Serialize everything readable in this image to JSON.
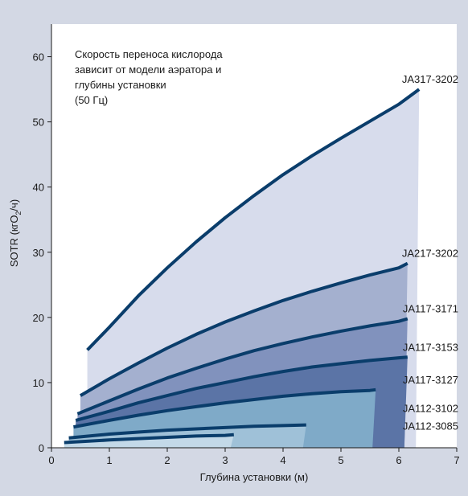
{
  "chart_data": {
    "type": "area",
    "annotation": [
      "Скорость переноса кислорода",
      "зависит от модели аэратора и",
      "глубины установки",
      "(50 Гц)"
    ],
    "xlabel": "Глубина установки (м)",
    "ylabel": {
      "prefix": "SOTR (кгО",
      "sub": "2",
      "suffix": "/ч)"
    },
    "xlim": [
      0,
      7
    ],
    "ylim": [
      0,
      65
    ],
    "x_ticks": [
      0,
      1,
      2,
      3,
      4,
      5,
      6,
      7
    ],
    "y_ticks": [
      0,
      10,
      20,
      30,
      40,
      50,
      60
    ],
    "grid": false,
    "series": [
      {
        "name": "JA317-3202",
        "color": "#d7dcec",
        "x": [
          0.62,
          1.0,
          1.5,
          2.0,
          2.5,
          3.0,
          3.5,
          4.0,
          4.5,
          5.0,
          5.5,
          6.0,
          6.35
        ],
        "values": [
          15,
          18.5,
          23.3,
          27.6,
          31.6,
          35.3,
          38.7,
          41.9,
          44.8,
          47.5,
          50.1,
          52.7,
          55
        ]
      },
      {
        "name": "JA217-3202",
        "color": "#a4b0cf",
        "x": [
          0.5,
          1.0,
          1.5,
          2.0,
          2.5,
          3.0,
          3.5,
          4.0,
          4.5,
          5.0,
          5.5,
          6.0,
          6.15
        ],
        "values": [
          8,
          10.6,
          13.0,
          15.3,
          17.4,
          19.3,
          21.0,
          22.6,
          24.0,
          25.3,
          26.5,
          27.6,
          28.3
        ]
      },
      {
        "name": "JA117-3171",
        "color": "#8192bd",
        "x": [
          0.45,
          1.0,
          1.5,
          2.0,
          2.5,
          3.0,
          3.5,
          4.0,
          4.5,
          5.0,
          5.5,
          6.0,
          6.15
        ],
        "values": [
          5.2,
          7.2,
          9.0,
          10.7,
          12.2,
          13.6,
          14.9,
          16.0,
          17.0,
          17.9,
          18.7,
          19.4,
          19.8
        ]
      },
      {
        "name": "JA117-3153",
        "color": "#5b74a6",
        "x": [
          0.42,
          1.0,
          1.5,
          2.0,
          2.5,
          3.0,
          3.5,
          4.0,
          4.5,
          5.0,
          5.5,
          6.0,
          6.15
        ],
        "values": [
          4.2,
          5.6,
          6.9,
          8.0,
          9.1,
          10.0,
          10.9,
          11.7,
          12.4,
          12.9,
          13.4,
          13.8,
          13.9
        ]
      },
      {
        "name": "JA117-3127",
        "color": "#7faac8",
        "x": [
          0.38,
          1.0,
          1.5,
          2.0,
          2.5,
          3.0,
          3.5,
          4.0,
          4.5,
          5.0,
          5.5,
          5.6
        ],
        "values": [
          3.2,
          4.2,
          5.0,
          5.7,
          6.3,
          6.9,
          7.4,
          7.9,
          8.3,
          8.6,
          8.8,
          8.9
        ]
      },
      {
        "name": "JA112-3102",
        "color": "#9fc1d8",
        "x": [
          0.3,
          1.0,
          1.5,
          2.0,
          2.5,
          3.0,
          3.5,
          4.0,
          4.4
        ],
        "values": [
          1.5,
          2.1,
          2.4,
          2.7,
          2.9,
          3.1,
          3.3,
          3.4,
          3.5
        ]
      },
      {
        "name": "JA112-3085",
        "color": "#c3d9e8",
        "x": [
          0.22,
          1.0,
          1.5,
          2.0,
          2.5,
          3.0,
          3.15
        ],
        "values": [
          0.8,
          1.2,
          1.4,
          1.6,
          1.8,
          1.9,
          2.0
        ]
      }
    ]
  }
}
